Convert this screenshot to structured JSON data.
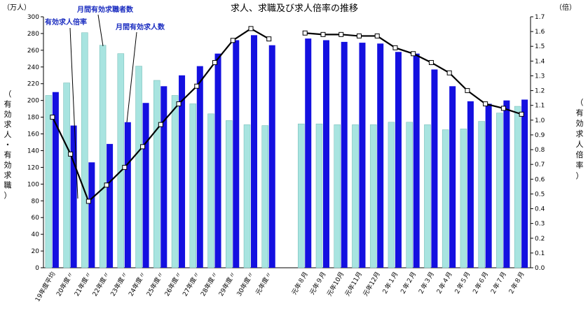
{
  "chart_data": {
    "type": "bar",
    "title": "求人、求職及び求人倍率の推移",
    "left_unit": "（万人）",
    "right_unit": "（倍）",
    "left_axis_label": "有効求人・有効求職",
    "right_axis_label": "有効求人倍率",
    "ylim_left": [
      0,
      300
    ],
    "ylim_right": [
      0,
      1.7
    ],
    "left_ticks": [
      "0",
      "20",
      "40",
      "60",
      "80",
      "100",
      "120",
      "140",
      "160",
      "180",
      "200",
      "220",
      "240",
      "260",
      "280",
      "300"
    ],
    "right_ticks": [
      "0.0",
      "0.1",
      "0.2",
      "0.3",
      "0.4",
      "0.5",
      "0.6",
      "0.7",
      "0.8",
      "0.9",
      "1.0",
      "1.1",
      "1.2",
      "1.3",
      "1.4",
      "1.5",
      "1.6",
      "1.7"
    ],
    "categories": [
      "19年度平均",
      "20年度〃",
      "21年度〃",
      "22年度〃",
      "23年度〃",
      "24年度〃",
      "25年度〃",
      "26年度〃",
      "27年度〃",
      "28年度〃",
      "29年度〃",
      "30年度〃",
      "元年度〃",
      "",
      "元年８月",
      "元年９月",
      "元年10月",
      "元年11月",
      "元年12月",
      "２年１月",
      "２年２月",
      "２年３月",
      "２年４月",
      "２年５月",
      "２年６月",
      "２年７月",
      "２年８月"
    ],
    "series": [
      {
        "name": "月間有効求職者数",
        "kind": "bar",
        "color": "#a8e4e0",
        "values": [
          206,
          221,
          281,
          266,
          256,
          241,
          224,
          206,
          196,
          184,
          176,
          171,
          170,
          null,
          172,
          172,
          171,
          171,
          171,
          174,
          174,
          171,
          165,
          166,
          175,
          185,
          193
        ]
      },
      {
        "name": "月間有効求人数",
        "kind": "bar",
        "color": "#1410e0",
        "values": [
          210,
          170,
          126,
          148,
          174,
          197,
          217,
          230,
          241,
          256,
          272,
          278,
          266,
          null,
          274,
          272,
          270,
          269,
          268,
          258,
          256,
          237,
          217,
          199,
          196,
          200,
          201
        ]
      },
      {
        "name": "有効求人倍率",
        "kind": "line",
        "axis": "right",
        "color": "#000000",
        "values": [
          1.02,
          0.77,
          0.45,
          0.56,
          0.68,
          0.82,
          0.97,
          1.11,
          1.23,
          1.39,
          1.54,
          1.62,
          1.55,
          null,
          1.59,
          1.58,
          1.58,
          1.57,
          1.57,
          1.49,
          1.45,
          1.39,
          1.32,
          1.2,
          1.11,
          1.08,
          1.04
        ]
      }
    ],
    "annotations": [
      "有効求人倍率",
      "月間有効求職者数",
      "月間有効求人数"
    ],
    "grid": false
  }
}
